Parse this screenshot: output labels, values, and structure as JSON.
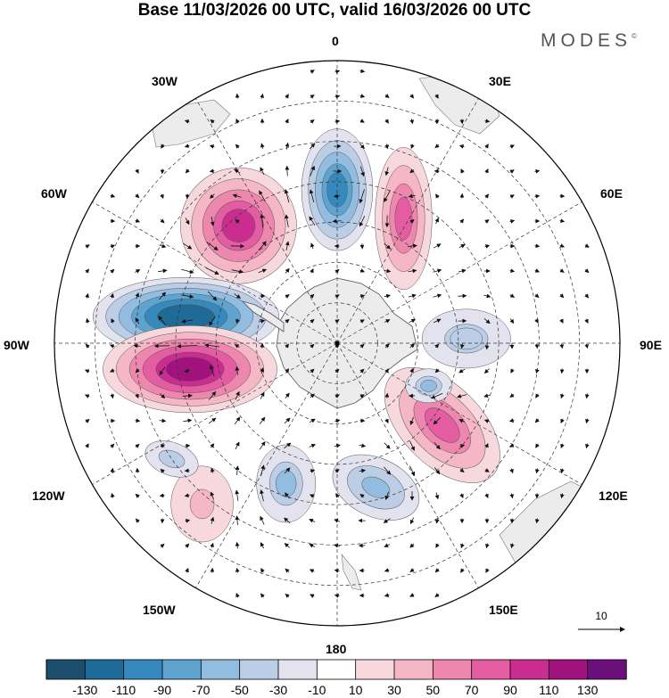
{
  "title": "Base 11/03/2026 00 UTC, valid 16/03/2026 00 UTC",
  "brand": {
    "name": "MODES",
    "mark": "©"
  },
  "longitude_labels": [
    {
      "key": "lon_0",
      "text": "0"
    },
    {
      "key": "lon_30e",
      "text": "30E"
    },
    {
      "key": "lon_60e",
      "text": "60E"
    },
    {
      "key": "lon_90e",
      "text": "90E"
    },
    {
      "key": "lon_120e",
      "text": "120E"
    },
    {
      "key": "lon_150e",
      "text": "150E"
    },
    {
      "key": "lon_180",
      "text": "180"
    },
    {
      "key": "lon_150w",
      "text": "150W"
    },
    {
      "key": "lon_120w",
      "text": "120W"
    },
    {
      "key": "lon_90w",
      "text": "90W"
    },
    {
      "key": "lon_60w",
      "text": "60W"
    },
    {
      "key": "lon_30w",
      "text": "30W"
    }
  ],
  "reference_vector": {
    "value": "10"
  },
  "colorbar": {
    "colors": [
      "#1d4e6e",
      "#1f6b98",
      "#3589bd",
      "#5fa4cf",
      "#93bde0",
      "#bccde6",
      "#e2e3ef",
      "#ffffff",
      "#f7d9dd",
      "#f5b7c6",
      "#ee87ae",
      "#e45ca1",
      "#cb2c8f",
      "#a2127f",
      "#6b0f7a"
    ],
    "ticks": [
      "-130",
      "-110",
      "-90",
      "-70",
      "-50",
      "-30",
      "-10",
      "10",
      "30",
      "50",
      "70",
      "90",
      "110",
      "130"
    ]
  },
  "anomalies": [
    {
      "lon": 0,
      "lat": -52,
      "rx": 38,
      "ry": 65,
      "val": -95,
      "rot": 0
    },
    {
      "lon": 28,
      "lat": -55,
      "rx": 32,
      "ry": 80,
      "val": 75,
      "rot": 0
    },
    {
      "lon": -40,
      "lat": -52,
      "rx": 62,
      "ry": 62,
      "val": 95,
      "rot": -20
    },
    {
      "lon": -80,
      "lat": -52,
      "rx": 95,
      "ry": 40,
      "val": -125,
      "rot": 0
    },
    {
      "lon": -100,
      "lat": -53,
      "rx": 90,
      "ry": 45,
      "val": 115,
      "rot": 0
    },
    {
      "lon": 88,
      "lat": -58,
      "rx": 60,
      "ry": 40,
      "val": -45,
      "rot": 0
    },
    {
      "lon": 128,
      "lat": -57,
      "rx": 80,
      "ry": 45,
      "val": 75,
      "rot": 45
    },
    {
      "lon": 165,
      "lat": -53,
      "rx": 55,
      "ry": 35,
      "val": -60,
      "rot": 25
    },
    {
      "lon": -160,
      "lat": -53,
      "rx": 38,
      "ry": 50,
      "val": -50,
      "rot": 0
    },
    {
      "lon": -140,
      "lat": -38,
      "rx": 45,
      "ry": 55,
      "val": 40,
      "rot": 0
    },
    {
      "lon": -125,
      "lat": -40,
      "rx": 50,
      "ry": 30,
      "val": -30,
      "rot": 20
    },
    {
      "lon": 115,
      "lat": -65,
      "rx": 30,
      "ry": 22,
      "val": -50,
      "rot": 0
    }
  ]
}
